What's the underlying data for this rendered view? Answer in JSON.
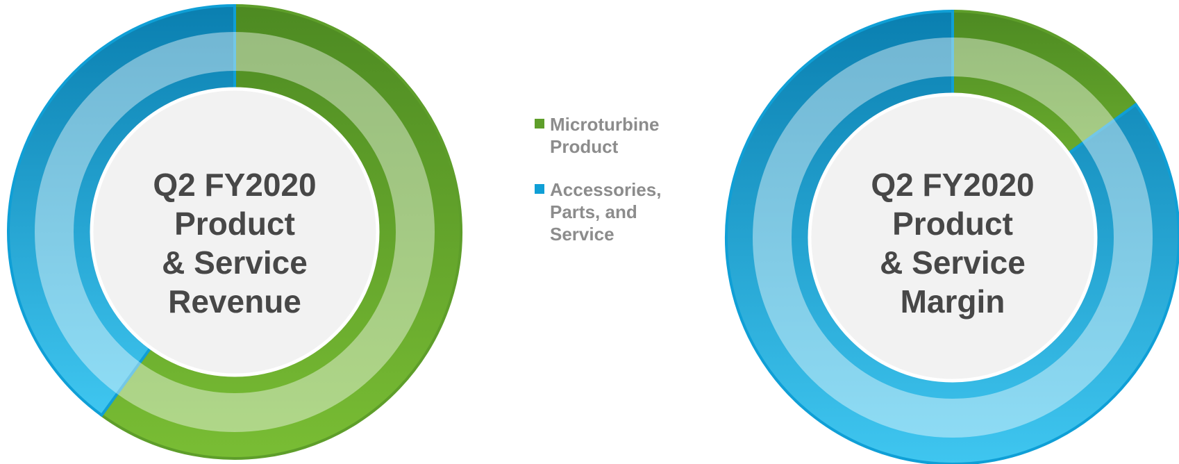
{
  "colors": {
    "green": "#5e9e2a",
    "blue": "#0f9fd6",
    "text": "#474747",
    "legend_text": "#8c8c8c"
  },
  "legend": [
    {
      "label": "Microturbine Product",
      "color": "#5e9e2a"
    },
    {
      "label": "Accessories, Parts, and Service",
      "color": "#0f9fd6"
    }
  ],
  "chart_data": [
    {
      "type": "pie",
      "title_lines": [
        "Q2 FY2020",
        "Product",
        "& Service",
        "Revenue"
      ],
      "categories": [
        "Microturbine Product",
        "Accessories, Parts, and Service"
      ],
      "values": [
        60,
        40
      ],
      "colors": [
        "#5e9e2a",
        "#0f9fd6"
      ],
      "legend": "center"
    },
    {
      "type": "pie",
      "title_lines": [
        "Q2 FY2020",
        "Product",
        "& Service",
        "Margin"
      ],
      "categories": [
        "Microturbine Product",
        "Accessories, Parts, and Service"
      ],
      "values": [
        15,
        85
      ],
      "colors": [
        "#5e9e2a",
        "#0f9fd6"
      ],
      "legend": "center"
    }
  ]
}
